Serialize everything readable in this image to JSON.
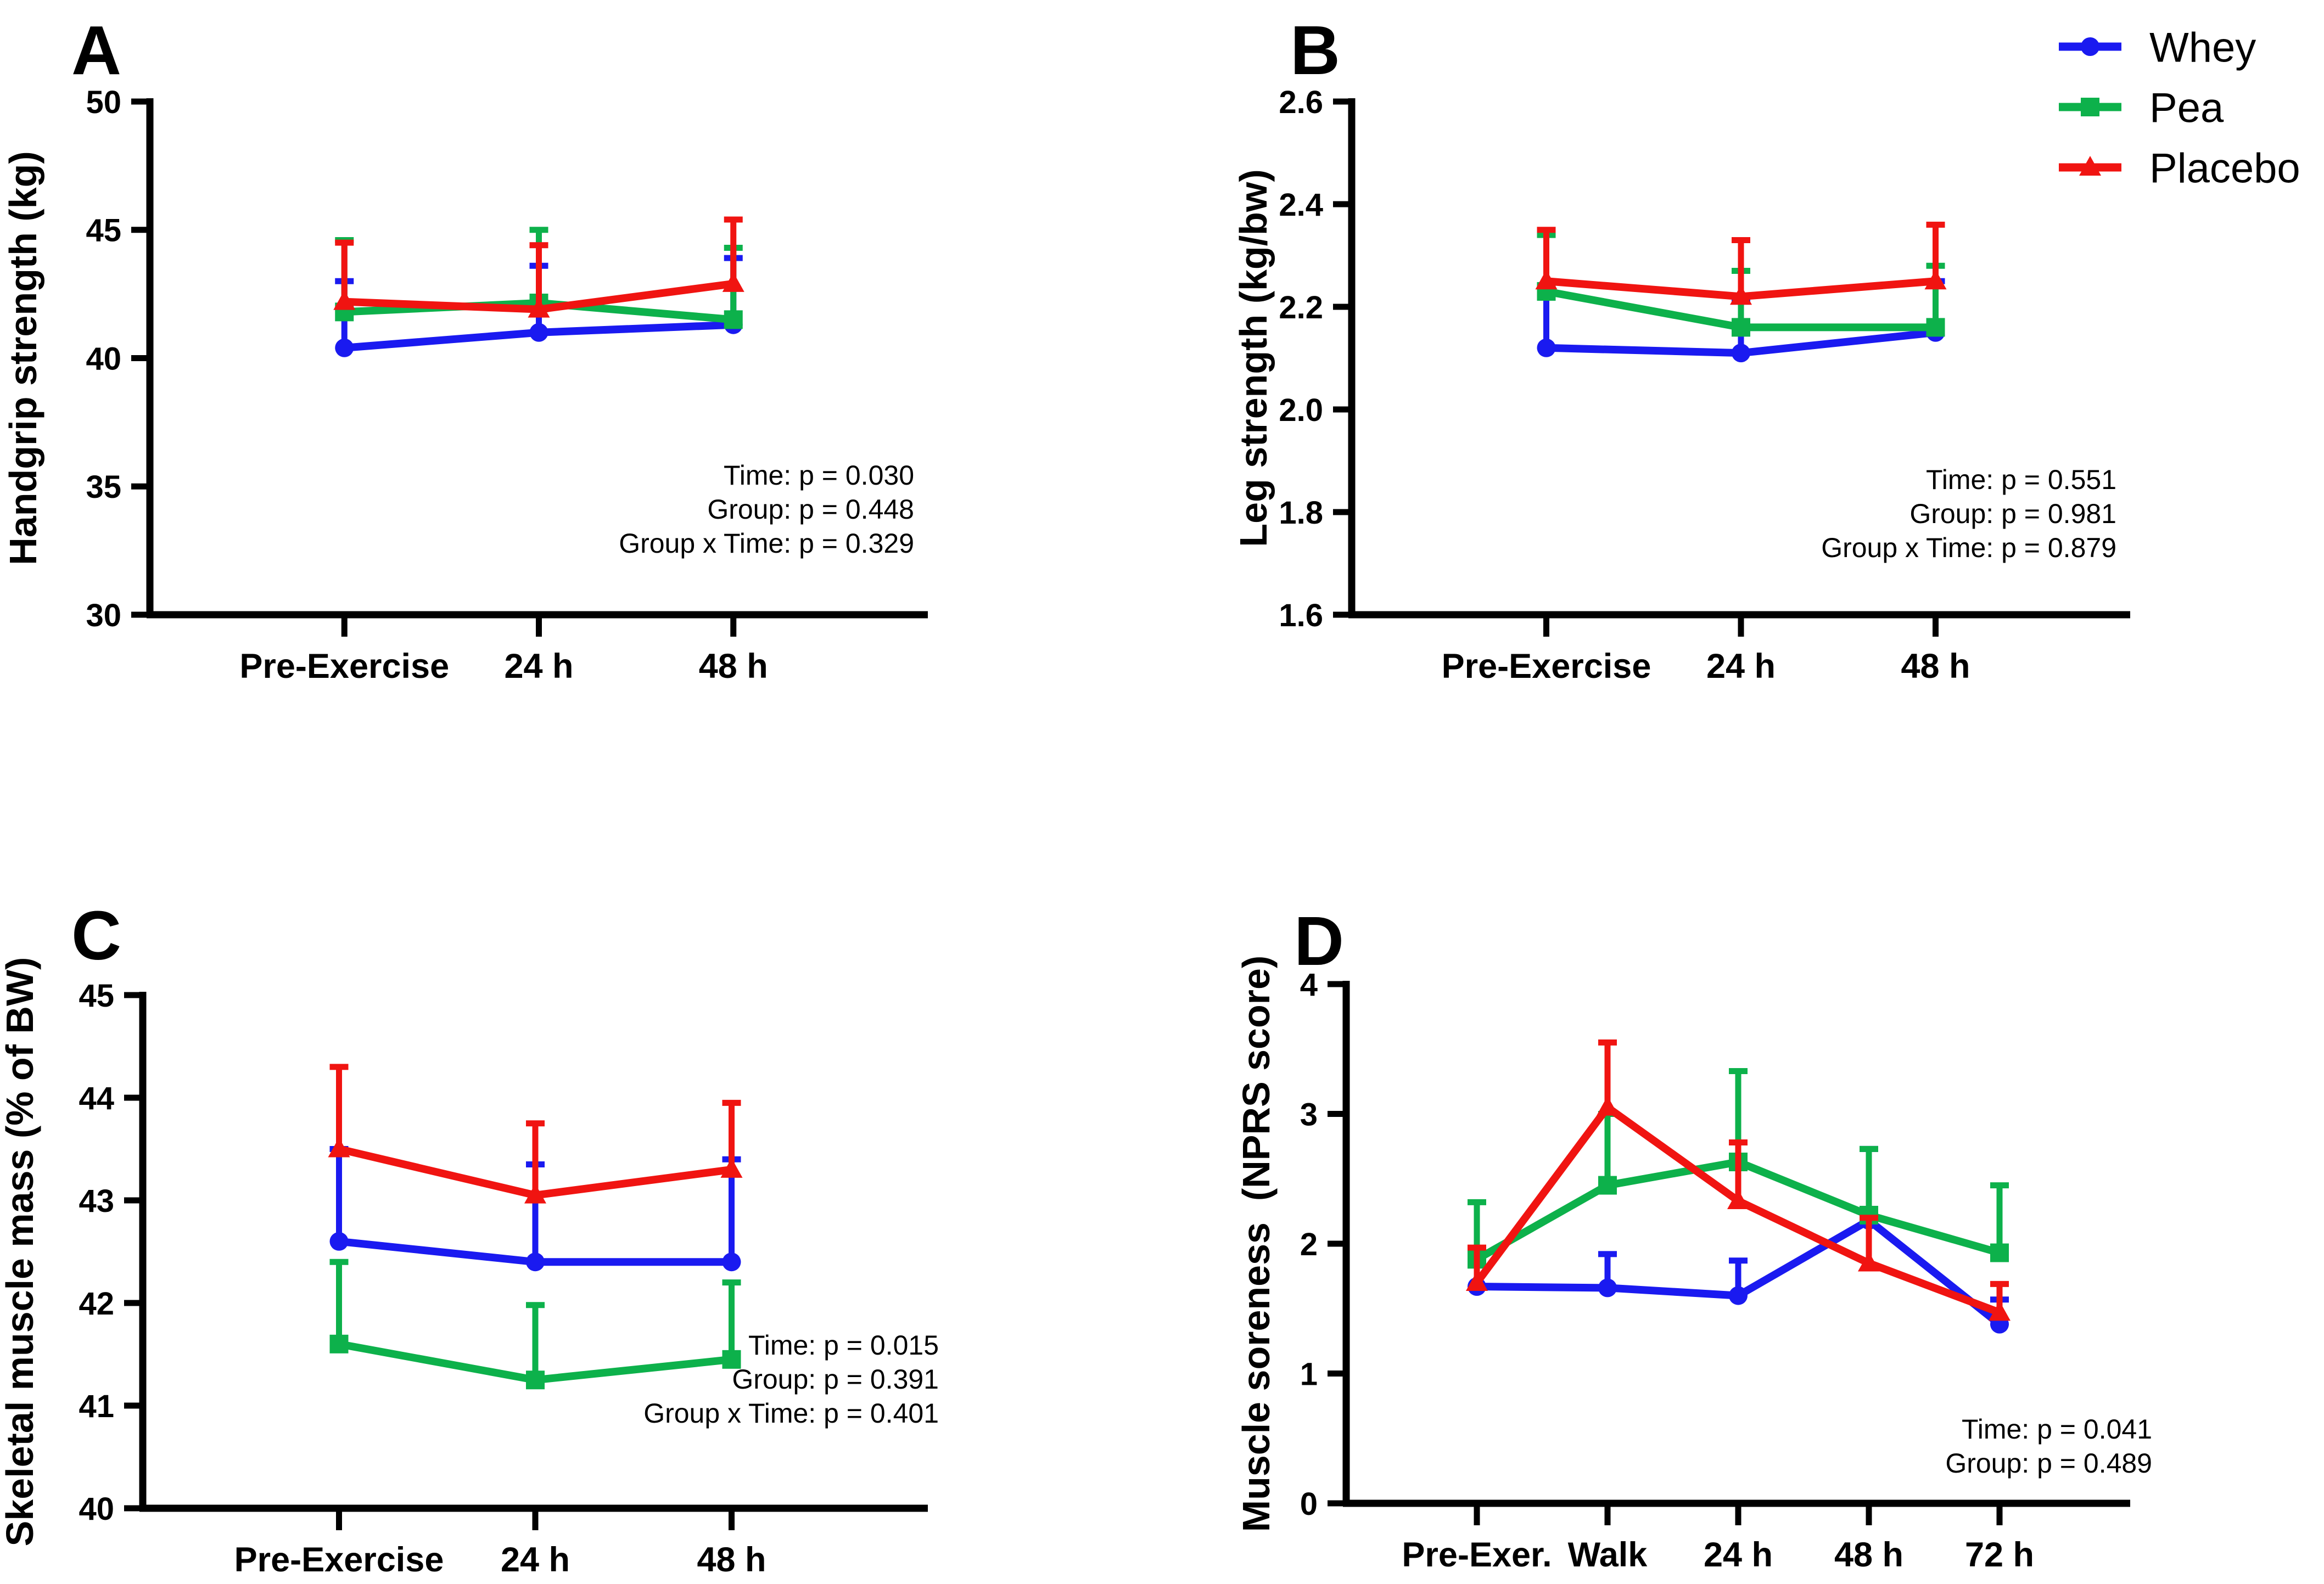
{
  "figure": {
    "background": "#ffffff",
    "panel_letters": [
      "A",
      "B",
      "C",
      "D"
    ]
  },
  "legend": {
    "items": [
      {
        "label": "Whey",
        "color": "#1a1af0",
        "marker": "circle"
      },
      {
        "label": "Pea",
        "color": "#0db14b",
        "marker": "square"
      },
      {
        "label": "Placebo",
        "color": "#f01411",
        "marker": "triangle"
      }
    ]
  },
  "chart_data": [
    {
      "type": "line",
      "panel": "A",
      "title": "",
      "ylabel": "Handgrip strength (kg)",
      "xlabel": "",
      "ylim": [
        30,
        50
      ],
      "yticks": [
        "30",
        "35",
        "40",
        "45",
        "50"
      ],
      "categories": [
        "Pre-Exercise",
        "24 h",
        "48 h"
      ],
      "grid": false,
      "error_bars": "upper_only",
      "series": [
        {
          "name": "Whey",
          "values": [
            40.4,
            41.0,
            41.3
          ],
          "err_up": [
            2.6,
            2.6,
            2.6
          ]
        },
        {
          "name": "Pea",
          "values": [
            41.8,
            42.15,
            41.5
          ],
          "err_up": [
            2.8,
            2.85,
            2.8
          ]
        },
        {
          "name": "Placebo",
          "values": [
            42.2,
            41.9,
            42.9
          ],
          "err_up": [
            2.3,
            2.5,
            2.5
          ]
        }
      ],
      "stats": [
        "Time: p = 0.030",
        "Group: p = 0.448",
        "Group x Time: p = 0.329"
      ]
    },
    {
      "type": "line",
      "panel": "B",
      "title": "",
      "ylabel": "Leg strength (kg/bw)",
      "xlabel": "",
      "ylim": [
        1.6,
        2.6
      ],
      "yticks": [
        "1.6",
        "1.8",
        "2.0",
        "2.2",
        "2.4",
        "2.6"
      ],
      "categories": [
        "Pre-Exercise",
        "24 h",
        "48 h"
      ],
      "grid": false,
      "error_bars": "upper_only",
      "series": [
        {
          "name": "Whey",
          "values": [
            2.12,
            2.11,
            2.15
          ],
          "err_up": [
            0.11,
            0.1,
            0.1
          ]
        },
        {
          "name": "Pea",
          "values": [
            2.23,
            2.16,
            2.16
          ],
          "err_up": [
            0.11,
            0.11,
            0.12
          ]
        },
        {
          "name": "Placebo",
          "values": [
            2.25,
            2.22,
            2.25
          ],
          "err_up": [
            0.1,
            0.11,
            0.11
          ]
        }
      ],
      "stats": [
        "Time: p = 0.551",
        "Group: p = 0.981",
        "Group x Time: p = 0.879"
      ]
    },
    {
      "type": "line",
      "panel": "C",
      "title": "",
      "ylabel": "Skeletal muscle mass (% of BW)",
      "xlabel": "",
      "ylim": [
        40,
        45
      ],
      "yticks": [
        "40",
        "41",
        "42",
        "43",
        "44",
        "45"
      ],
      "categories": [
        "Pre-Exercise",
        "24 h",
        "48 h"
      ],
      "grid": false,
      "error_bars": "upper_only",
      "series": [
        {
          "name": "Whey",
          "values": [
            42.6,
            42.4,
            42.4
          ],
          "err_up": [
            0.9,
            0.95,
            1.0
          ]
        },
        {
          "name": "Pea",
          "values": [
            41.6,
            41.25,
            41.45
          ],
          "err_up": [
            0.8,
            0.73,
            0.75
          ]
        },
        {
          "name": "Placebo",
          "values": [
            43.5,
            43.05,
            43.3
          ],
          "err_up": [
            0.8,
            0.7,
            0.65
          ]
        }
      ],
      "stats": [
        "Time: p = 0.015",
        "Group: p = 0.391",
        "Group x Time: p = 0.401"
      ]
    },
    {
      "type": "line",
      "panel": "D",
      "title": "",
      "ylabel": "Muscle soreness  (NPRS score)",
      "xlabel": "",
      "ylim": [
        0,
        4
      ],
      "yticks": [
        "0",
        "1",
        "2",
        "3",
        "4"
      ],
      "categories": [
        "Pre-Exer.",
        "Walk",
        "24 h",
        "48 h",
        "72 h"
      ],
      "grid": false,
      "error_bars": "upper_only",
      "series": [
        {
          "name": "Whey",
          "values": [
            1.67,
            1.66,
            1.6,
            2.18,
            1.38
          ],
          "err_up": [
            0.28,
            0.26,
            0.27,
            0.55,
            0.19
          ]
        },
        {
          "name": "Pea",
          "values": [
            1.88,
            2.45,
            2.63,
            2.22,
            1.93
          ],
          "err_up": [
            0.44,
            0.55,
            0.7,
            0.51,
            0.52
          ]
        },
        {
          "name": "Placebo",
          "values": [
            1.7,
            3.05,
            2.33,
            1.85,
            1.47
          ],
          "err_up": [
            0.27,
            0.5,
            0.45,
            0.35,
            0.22
          ]
        }
      ],
      "stats": [
        "Time: p = 0.041",
        "Group: p = 0.489"
      ]
    }
  ]
}
